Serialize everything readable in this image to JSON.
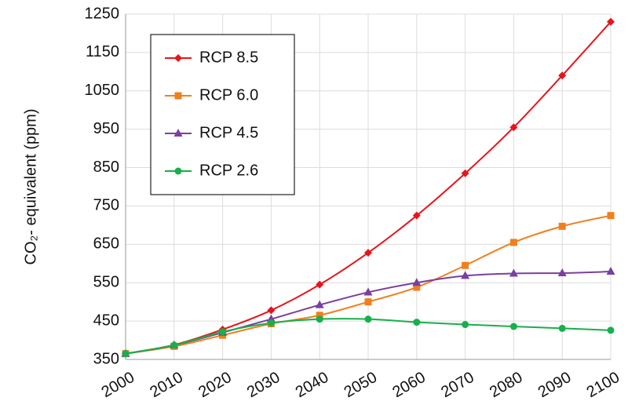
{
  "chart_data": {
    "type": "line",
    "y_label": "CO₂- equivalent (ppm)",
    "x": [
      2000,
      2010,
      2020,
      2030,
      2040,
      2050,
      2060,
      2070,
      2080,
      2090,
      2100
    ],
    "xlim": [
      2000,
      2100
    ],
    "xticks": [
      2000,
      2010,
      2020,
      2030,
      2040,
      2050,
      2060,
      2070,
      2080,
      2090,
      2100
    ],
    "ylim": [
      350,
      1250
    ],
    "yticks": [
      350,
      450,
      550,
      650,
      750,
      850,
      950,
      1050,
      1150,
      1250
    ],
    "grid": true,
    "legend": "upper-left",
    "series": [
      {
        "name": "RCP 8.5",
        "color": "#e8141b",
        "marker": "diamond",
        "values": [
          365,
          388,
          428,
          478,
          545,
          628,
          725,
          835,
          955,
          1090,
          1230
        ]
      },
      {
        "name": "RCP 6.0",
        "color": "#f07f1d",
        "marker": "square",
        "values": [
          365,
          384,
          413,
          443,
          465,
          500,
          538,
          595,
          655,
          697,
          725
        ]
      },
      {
        "name": "RCP 4.5",
        "color": "#7a3fa0",
        "marker": "triangle",
        "values": [
          365,
          387,
          420,
          455,
          492,
          525,
          550,
          568,
          574,
          575,
          579
        ]
      },
      {
        "name": "RCP 2.6",
        "color": "#16b04c",
        "marker": "circle",
        "values": [
          365,
          387,
          422,
          445,
          455,
          455,
          447,
          441,
          436,
          431,
          426
        ]
      }
    ]
  }
}
